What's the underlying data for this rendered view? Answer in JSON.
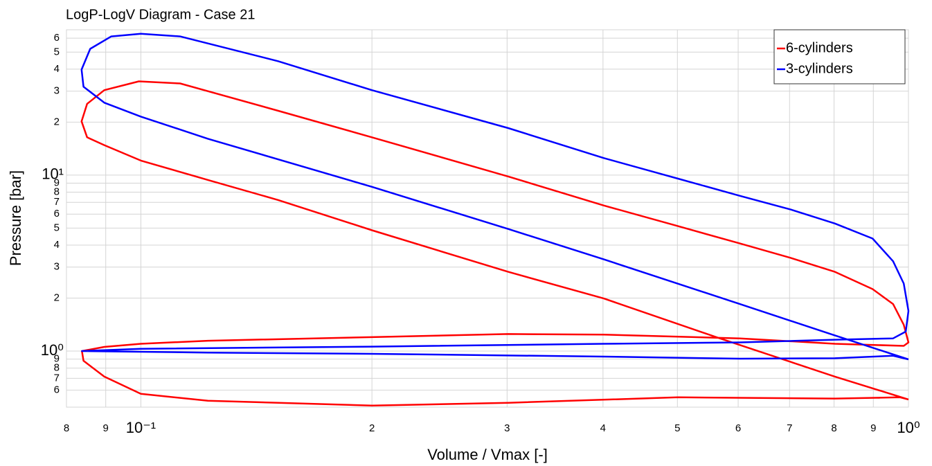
{
  "chart_data": {
    "type": "line",
    "title": "LogP-LogV Diagram - Case 21",
    "xlabel": "Volume / Vmax [-]",
    "ylabel": "Pressure [bar]",
    "xscale": "log",
    "yscale": "log",
    "grid": true,
    "legend": "upper right",
    "xlim": [
      0.08,
      1
    ],
    "ylim": [
      0.48,
      67
    ],
    "xticks": [
      {
        "value": 0.08,
        "label": "8"
      },
      {
        "value": 0.09,
        "label": "9"
      },
      {
        "value": 0.1,
        "label": "10⁻¹"
      },
      {
        "value": 0.2,
        "label": "2"
      },
      {
        "value": 0.3,
        "label": "3"
      },
      {
        "value": 0.4,
        "label": "4"
      },
      {
        "value": 0.5,
        "label": "5"
      },
      {
        "value": 0.6,
        "label": "6"
      },
      {
        "value": 0.7,
        "label": "7"
      },
      {
        "value": 0.8,
        "label": "8"
      },
      {
        "value": 0.9,
        "label": "9"
      },
      {
        "value": 1,
        "label": "10⁰"
      }
    ],
    "yticks": [
      {
        "value": 0.6,
        "label": "6"
      },
      {
        "value": 0.7,
        "label": "7"
      },
      {
        "value": 0.8,
        "label": "8"
      },
      {
        "value": 0.9,
        "label": "9"
      },
      {
        "value": 1,
        "label": "10⁰"
      },
      2,
      3,
      4,
      5,
      6,
      7,
      8,
      9,
      {
        "value": 10,
        "label": "10¹"
      },
      {
        "value": 20,
        "label": "2"
      },
      {
        "value": 30,
        "label": "3"
      },
      {
        "value": 40,
        "label": "4"
      },
      {
        "value": 50,
        "label": "5"
      },
      {
        "value": 60,
        "label": "6"
      }
    ],
    "series": [
      {
        "name": "6-cylinders",
        "color": "#ff0000",
        "x": [
          1,
          0.802,
          0.568,
          0.401,
          0.301,
          0.2,
          0.151,
          0.1223,
          0.1,
          0.0896,
          0.0851,
          0.0837,
          0.0851,
          0.0896,
          0.0994,
          0.1125,
          0.151,
          0.2,
          0.301,
          0.401,
          0.501,
          0.603,
          0.703,
          0.802,
          0.898,
          0.955,
          0.986,
          1,
          0.986,
          0.802,
          0.603,
          0.401,
          0.301,
          0.2,
          0.1223,
          0.1,
          0.0896,
          0.0838,
          0.0842,
          0.0896,
          0.1,
          0.1223,
          0.2,
          0.301,
          0.501,
          0.802,
          0.975,
          1
        ],
        "values": [
          0.531,
          0.716,
          1.18,
          1.99,
          2.82,
          4.86,
          7.22,
          9.39,
          12.1,
          14.8,
          16.4,
          20.2,
          25.4,
          30.4,
          34.1,
          33.2,
          23.2,
          16.4,
          9.82,
          6.72,
          5.13,
          4.09,
          3.38,
          2.82,
          2.25,
          1.85,
          1.41,
          1.12,
          1.07,
          1.1,
          1.18,
          1.24,
          1.25,
          1.2,
          1.145,
          1.1,
          1.056,
          1,
          0.881,
          0.716,
          0.571,
          0.522,
          0.49,
          0.508,
          0.546,
          0.537,
          0.546,
          0.531
        ]
      },
      {
        "name": "3-cylinders",
        "color": "#0000ff",
        "x": [
          1,
          0.792,
          0.603,
          0.401,
          0.301,
          0.2,
          0.1223,
          0.1,
          0.0896,
          0.0842,
          0.0837,
          0.0859,
          0.0915,
          0.1,
          0.1125,
          0.151,
          0.2,
          0.301,
          0.401,
          0.501,
          0.603,
          0.703,
          0.802,
          0.898,
          0.955,
          0.986,
          1,
          0.992,
          0.955,
          0.802,
          0.603,
          0.401,
          0.2,
          0.1,
          0.0838,
          0.1223,
          0.2,
          0.401,
          0.603,
          0.802,
          0.955,
          1
        ],
        "values": [
          0.897,
          1.25,
          1.85,
          3.32,
          4.94,
          8.58,
          16.1,
          21.5,
          25.8,
          31.8,
          39.8,
          52.2,
          61.4,
          63.6,
          61.4,
          44.4,
          30.4,
          18.5,
          12.5,
          9.55,
          7.63,
          6.37,
          5.31,
          4.36,
          3.24,
          2.42,
          1.69,
          1.29,
          1.18,
          1.16,
          1.12,
          1.1,
          1.06,
          1.03,
          1,
          0.98,
          0.964,
          0.93,
          0.905,
          0.91,
          0.94,
          0.897
        ]
      }
    ]
  }
}
